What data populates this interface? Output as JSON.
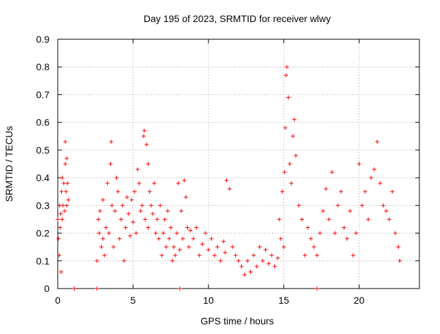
{
  "chart_data": {
    "type": "scatter",
    "title": "Day 195 of 2023, SRMTID for receiver wlwy",
    "xlabel": "GPS time / hours",
    "ylabel": "SRMTID / TECUs",
    "xlim": [
      0,
      24
    ],
    "ylim": [
      0,
      0.9
    ],
    "x_ticks": [
      0,
      5,
      10,
      15,
      20
    ],
    "x_tick_labels": [
      "0",
      "5",
      "10",
      "15",
      "20"
    ],
    "y_ticks": [
      0,
      0.1,
      0.2,
      0.3,
      0.4,
      0.5,
      0.6,
      0.7,
      0.8,
      0.9
    ],
    "y_tick_labels": [
      "0",
      "0.1",
      "0.2",
      "0.3",
      "0.4",
      "0.5",
      "0.6",
      "0.7",
      "0.8",
      "0.9"
    ],
    "grid": true,
    "marker": "+",
    "colors": {
      "series": "#ff0000",
      "grid": "#a0a0a0",
      "axis": "#000000"
    },
    "series": [
      {
        "name": "SRMTID",
        "x": [
          0.0,
          0.05,
          0.1,
          0.12,
          0.15,
          0.2,
          0.22,
          0.25,
          0.3,
          0.3,
          0.35,
          0.4,
          0.45,
          0.5,
          0.5,
          0.55,
          0.6,
          0.6,
          0.65,
          0.7,
          1.1,
          1.1,
          2.6,
          2.6,
          2.7,
          2.75,
          2.8,
          2.9,
          3.0,
          3.0,
          3.1,
          3.2,
          3.3,
          3.4,
          3.5,
          3.55,
          3.6,
          3.7,
          3.8,
          3.9,
          4.0,
          4.1,
          4.2,
          4.3,
          4.4,
          4.5,
          4.6,
          4.7,
          4.8,
          4.9,
          5.0,
          5.1,
          5.2,
          5.3,
          5.4,
          5.5,
          5.6,
          5.7,
          5.75,
          5.8,
          5.9,
          6.0,
          6.0,
          6.1,
          6.2,
          6.3,
          6.4,
          6.5,
          6.6,
          6.7,
          6.8,
          6.9,
          7.0,
          7.1,
          7.2,
          7.3,
          7.4,
          7.5,
          7.6,
          7.7,
          7.8,
          7.9,
          8.0,
          8.1,
          8.1,
          8.2,
          8.3,
          8.4,
          8.5,
          8.6,
          8.7,
          8.8,
          9.0,
          9.2,
          9.4,
          9.6,
          9.8,
          10.0,
          10.2,
          10.4,
          10.6,
          10.8,
          11.0,
          11.1,
          11.2,
          11.4,
          11.6,
          11.8,
          12.0,
          12.2,
          12.4,
          12.6,
          12.8,
          13.0,
          13.2,
          13.4,
          13.6,
          13.8,
          14.0,
          14.2,
          14.4,
          14.6,
          14.7,
          14.8,
          14.9,
          15.0,
          15.05,
          15.1,
          15.15,
          15.2,
          15.3,
          15.4,
          15.5,
          15.6,
          15.7,
          15.8,
          16.0,
          16.2,
          16.4,
          16.6,
          16.8,
          17.0,
          17.2,
          17.2,
          17.4,
          17.6,
          17.8,
          18.0,
          18.2,
          18.4,
          18.6,
          18.8,
          19.0,
          19.2,
          19.4,
          19.6,
          19.8,
          20.0,
          20.2,
          20.4,
          20.6,
          20.8,
          21.0,
          21.2,
          21.4,
          21.6,
          21.8,
          22.0,
          22.2,
          22.4,
          22.6,
          22.7
        ],
        "y": [
          0.25,
          0.18,
          0.12,
          0.3,
          0.22,
          0.27,
          0.06,
          0.35,
          0.25,
          0.4,
          0.3,
          0.38,
          0.28,
          0.45,
          0.53,
          0.35,
          0.47,
          0.3,
          0.38,
          0.32,
          0.0,
          0.0,
          0.0,
          0.1,
          0.25,
          0.2,
          0.28,
          0.15,
          0.18,
          0.32,
          0.12,
          0.22,
          0.38,
          0.2,
          0.45,
          0.53,
          0.3,
          0.15,
          0.28,
          0.4,
          0.35,
          0.18,
          0.25,
          0.3,
          0.1,
          0.22,
          0.33,
          0.27,
          0.19,
          0.32,
          0.24,
          0.35,
          0.2,
          0.43,
          0.38,
          0.28,
          0.3,
          0.55,
          0.57,
          0.25,
          0.52,
          0.45,
          0.22,
          0.35,
          0.3,
          0.27,
          0.38,
          0.2,
          0.25,
          0.18,
          0.3,
          0.12,
          0.2,
          0.25,
          0.15,
          0.28,
          0.18,
          0.22,
          0.1,
          0.15,
          0.12,
          0.2,
          0.38,
          0.0,
          0.14,
          0.28,
          0.18,
          0.39,
          0.33,
          0.22,
          0.15,
          0.21,
          0.18,
          0.22,
          0.12,
          0.16,
          0.2,
          0.14,
          0.18,
          0.12,
          0.15,
          0.1,
          0.17,
          0.13,
          0.39,
          0.36,
          0.15,
          0.12,
          0.1,
          0.08,
          0.05,
          0.1,
          0.06,
          0.12,
          0.08,
          0.15,
          0.1,
          0.14,
          0.09,
          0.12,
          0.08,
          0.11,
          0.25,
          0.18,
          0.35,
          0.15,
          0.42,
          0.58,
          0.77,
          0.8,
          0.69,
          0.45,
          0.38,
          0.55,
          0.61,
          0.48,
          0.3,
          0.25,
          0.12,
          0.22,
          0.18,
          0.15,
          0.0,
          0.12,
          0.2,
          0.28,
          0.36,
          0.25,
          0.42,
          0.2,
          0.3,
          0.35,
          0.22,
          0.18,
          0.28,
          0.12,
          0.2,
          0.45,
          0.3,
          0.35,
          0.25,
          0.4,
          0.43,
          0.53,
          0.38,
          0.3,
          0.28,
          0.25,
          0.35,
          0.2,
          0.15,
          0.1
        ]
      }
    ]
  }
}
